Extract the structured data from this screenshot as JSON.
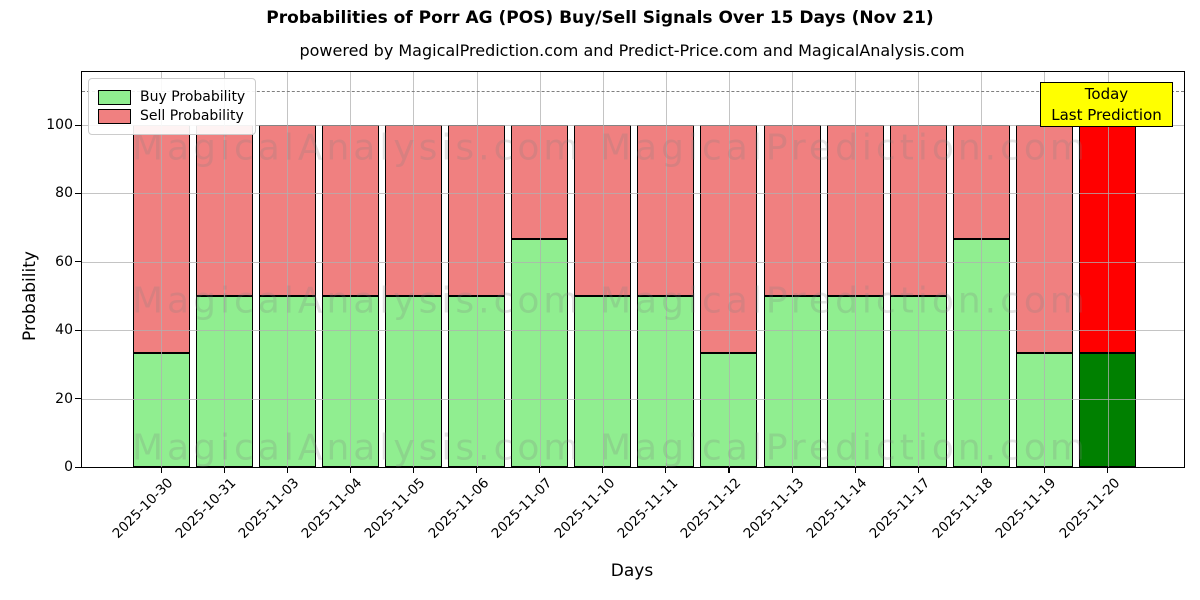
{
  "title": "Probabilities of Porr AG (POS) Buy/Sell Signals Over 15 Days (Nov 21)",
  "subtitle": "powered by MagicalPrediction.com and Predict-Price.com and MagicalAnalysis.com",
  "axes": {
    "x_label": "Days",
    "y_label": "Probability"
  },
  "legend": [
    {
      "label": "Buy Probability",
      "color": "#90EE90"
    },
    {
      "label": "Sell Probability",
      "color": "#F08080"
    }
  ],
  "annotation": {
    "line1": "Today",
    "line2": "Last Prediction",
    "bg_color": "#FFFF00"
  },
  "watermarks": {
    "left_text": "MagicalAnalysis.com",
    "right_text": "MagicalPrediction.com"
  },
  "chart_data": {
    "type": "bar",
    "stacked": true,
    "categories": [
      "2025-10-30",
      "2025-10-31",
      "2025-11-03",
      "2025-11-04",
      "2025-11-05",
      "2025-11-06",
      "2025-11-07",
      "2025-11-10",
      "2025-11-11",
      "2025-11-12",
      "2025-11-13",
      "2025-11-14",
      "2025-11-17",
      "2025-11-18",
      "2025-11-19",
      "2025-11-20"
    ],
    "series": [
      {
        "name": "Buy Probability",
        "color": "#90EE90",
        "today_color": "#008000",
        "values": [
          33.33,
          50,
          50,
          50,
          50,
          50,
          66.67,
          50,
          50,
          33.33,
          50,
          50,
          50,
          66.67,
          33.33,
          33.33
        ]
      },
      {
        "name": "Sell Probability",
        "color": "#F08080",
        "today_color": "#FF0000",
        "values": [
          66.67,
          50,
          50,
          50,
          50,
          50,
          33.33,
          50,
          50,
          66.67,
          50,
          50,
          50,
          33.33,
          66.67,
          66.67
        ]
      }
    ],
    "today_index": 15,
    "title": "Probabilities of Porr AG (POS) Buy/Sell Signals Over 15 Days (Nov 21)",
    "xlabel": "Days",
    "ylabel": "Probability",
    "ylim": [
      0,
      115.5
    ],
    "yticks": [
      0,
      20,
      40,
      60,
      80,
      100
    ],
    "dashed_line_y": 110,
    "grid": true,
    "legend_position": "upper left"
  }
}
